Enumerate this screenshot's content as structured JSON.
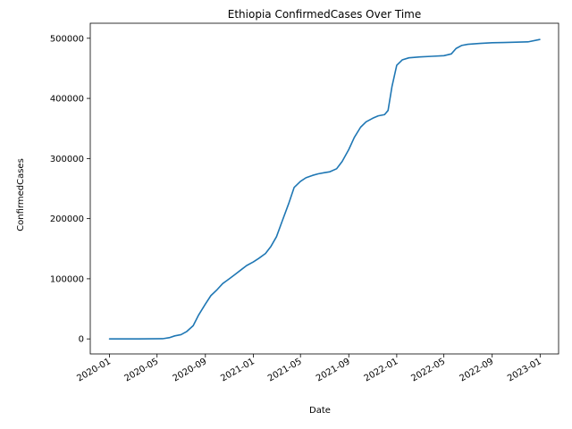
{
  "chart_data": {
    "type": "line",
    "title": "Ethiopia  ConfirmedCases Over Time",
    "xlabel": "Date",
    "ylabel": "ConfirmedCases",
    "xlim": [
      "2019-11-13",
      "2023-02-17"
    ],
    "ylim": [
      -25000,
      525000
    ],
    "grid": false,
    "x_ticks": [
      "2020-01",
      "2020-05",
      "2020-09",
      "2021-01",
      "2021-05",
      "2021-09",
      "2022-01",
      "2022-05",
      "2022-09",
      "2023-01"
    ],
    "y_ticks": [
      0,
      100000,
      200000,
      300000,
      400000,
      500000
    ],
    "y_tick_labels": [
      "0",
      "100000",
      "200000",
      "300000",
      "400000",
      "500000"
    ],
    "series": [
      {
        "color": "#1f77b4",
        "x": [
          "2020-01-01",
          "2020-03-15",
          "2020-05-15",
          "2020-06-01",
          "2020-06-15",
          "2020-07-01",
          "2020-07-15",
          "2020-08-01",
          "2020-08-15",
          "2020-09-01",
          "2020-09-15",
          "2020-10-01",
          "2020-10-15",
          "2020-11-01",
          "2020-11-15",
          "2020-12-01",
          "2020-12-15",
          "2021-01-01",
          "2021-01-15",
          "2021-02-01",
          "2021-02-15",
          "2021-03-01",
          "2021-03-15",
          "2021-04-01",
          "2021-04-15",
          "2021-05-01",
          "2021-05-15",
          "2021-06-01",
          "2021-06-15",
          "2021-07-01",
          "2021-07-15",
          "2021-08-01",
          "2021-08-15",
          "2021-09-01",
          "2021-09-15",
          "2021-10-01",
          "2021-10-15",
          "2021-11-01",
          "2021-11-15",
          "2021-12-01",
          "2021-12-10",
          "2021-12-20",
          "2022-01-01",
          "2022-01-15",
          "2022-02-01",
          "2022-03-01",
          "2022-04-01",
          "2022-05-01",
          "2022-05-20",
          "2022-06-01",
          "2022-06-15",
          "2022-07-01",
          "2022-08-01",
          "2022-09-01",
          "2022-10-01",
          "2022-11-01",
          "2022-12-01",
          "2022-12-31"
        ],
        "y": [
          0,
          0,
          300,
          2000,
          5000,
          7000,
          12000,
          22000,
          40000,
          58000,
          72000,
          82000,
          92000,
          100000,
          107000,
          115000,
          122000,
          128000,
          134000,
          142000,
          154000,
          170000,
          195000,
          225000,
          252000,
          262000,
          268000,
          272000,
          274500,
          276500,
          278000,
          283000,
          295000,
          315000,
          335000,
          352000,
          361000,
          367000,
          371000,
          373000,
          380000,
          420000,
          455000,
          464000,
          467500,
          469000,
          470000,
          471000,
          474000,
          483000,
          488000,
          490000,
          491500,
          492500,
          493000,
          493500,
          494000,
          498000
        ]
      }
    ]
  }
}
